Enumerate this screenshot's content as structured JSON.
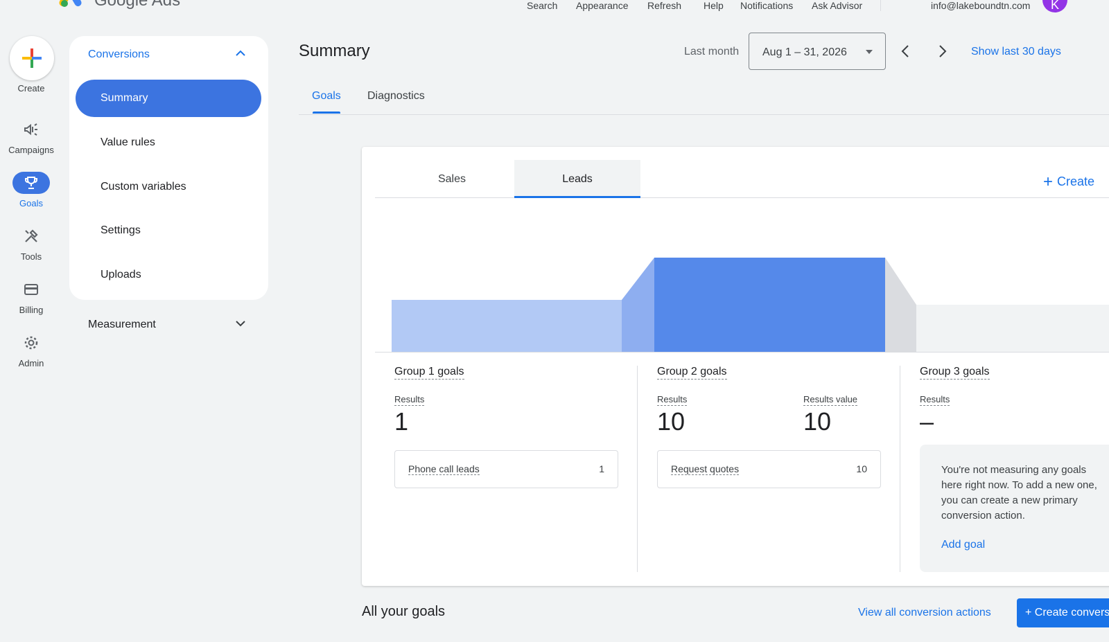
{
  "app": {
    "name": "Google Ads",
    "avatar_initial": "K"
  },
  "topbar": {
    "links": [
      "Search",
      "Appearance",
      "Refresh",
      "Help",
      "Notifications",
      "Ask Advisor"
    ],
    "email": "info@lakeboundtn.com"
  },
  "rail": {
    "create": "Create",
    "items": [
      {
        "label": "Campaigns",
        "icon": "megaphone-icon"
      },
      {
        "label": "Goals",
        "icon": "trophy-icon",
        "active": true
      },
      {
        "label": "Tools",
        "icon": "tools-icon"
      },
      {
        "label": "Billing",
        "icon": "credit-card-icon"
      },
      {
        "label": "Admin",
        "icon": "gear-icon"
      }
    ]
  },
  "subnav": {
    "header": "Conversions",
    "items": [
      "Summary",
      "Value rules",
      "Custom variables",
      "Settings",
      "Uploads"
    ],
    "active": "Summary",
    "measurement": "Measurement"
  },
  "header": {
    "title": "Summary",
    "date_label": "Last month",
    "date_value": "Aug 1 – 31, 2026",
    "show_last": "Show last 30 days"
  },
  "tabs": {
    "goals": "Goals",
    "diagnostics": "Diagnostics"
  },
  "card": {
    "tabs": {
      "sales": "Sales",
      "leads": "Leads"
    },
    "create_label": "Create",
    "groups": [
      {
        "title": "Group 1 goals",
        "results_label": "Results",
        "results": "1",
        "row": {
          "label": "Phone call leads",
          "value": "1"
        }
      },
      {
        "title": "Group 2 goals",
        "results_label": "Results",
        "results": "10",
        "results_value_label": "Results value",
        "results_value": "10",
        "row": {
          "label": "Request quotes",
          "value": "10"
        }
      },
      {
        "title": "Group 3 goals",
        "results_label": "Results",
        "results": "–",
        "note": "You're not measuring any goals\nhere right now. To add a new one,\nyou can create a new primary\nconversion action.",
        "add_goal": "Add goal"
      }
    ],
    "funnel_levels": [
      1,
      10,
      0
    ]
  },
  "footer": {
    "all_goals": "All your goals",
    "view_all": "View all conversion actions",
    "create_conversion": "+ Create conversion action"
  },
  "colors": {
    "accent": "#1a73e8",
    "active_pill": "#3c74e0",
    "funnel_light": "#b2c9f5",
    "funnel_dark": "#5589ea"
  }
}
